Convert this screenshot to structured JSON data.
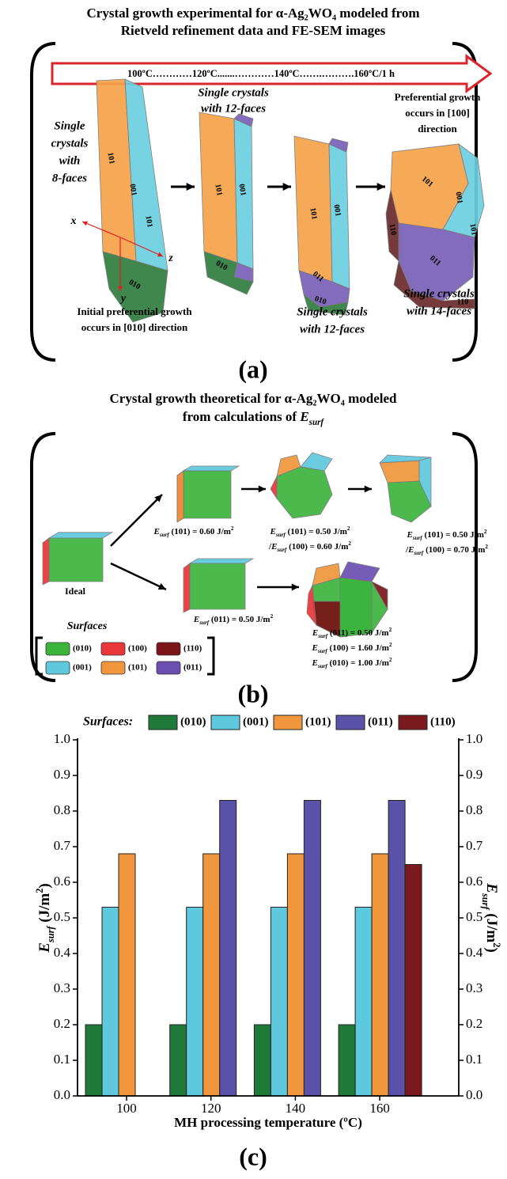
{
  "panel_a": {
    "title": [
      "Crystal growth experimental for α-Ag₂WO₄ modeled from",
      "Rietveld refinement data and FE-SEM images"
    ],
    "timeline": "100ºC…………120ºC.......…………140ºC…….……….160ºC/1 h",
    "labels": [
      {
        "lines": [
          "Single",
          "crystals",
          "with",
          "8-faces"
        ]
      },
      {
        "lines": [
          "Single crystals",
          "with 12-faces"
        ]
      },
      {
        "lines": [
          "Preferential growth",
          "occurs in [100]",
          "direction"
        ]
      },
      {
        "lines": [
          "Initial preferential growth",
          "occurs in [010] direction"
        ]
      },
      {
        "lines": [
          "Single crystals",
          "with 12-faces"
        ]
      },
      {
        "lines": [
          "Single crystals",
          "with 14-faces"
        ]
      }
    ],
    "axes": [
      "x",
      "z",
      "y"
    ],
    "faces": [
      "101",
      "001",
      "101",
      "010",
      "101",
      "001",
      "010",
      "101",
      "001",
      "011",
      "010",
      "101",
      "001",
      "101",
      "110",
      "011",
      "110"
    ],
    "panel_label": "(a)"
  },
  "panel_b": {
    "title": [
      {
        "text": "Crystal growth theoretical for α-Ag₂WO₄ modeled"
      },
      {
        "pre": "from calculations of ",
        "E": "E",
        "sub": "surf"
      }
    ],
    "ideal_label": "Ideal",
    "formulas": [
      [
        {
          "E": "E",
          "sub": "surf",
          "text": " (101) = 0.60 J/m",
          "sup": "2"
        }
      ],
      [
        {
          "E": "E",
          "sub": "surf",
          "text": " (101) = 0.50 J/m",
          "sup": "2"
        },
        {
          "pre": "/",
          "E": "E",
          "sub": "surf",
          "text": " (100) = 0.60 J/m",
          "sup": "2"
        }
      ],
      [
        {
          "E": "E",
          "sub": "surf",
          "text": " (101) = 0.50 J/m",
          "sup": "2"
        },
        {
          "pre": "/",
          "E": "E",
          "sub": "surf",
          "text": " (100) = 0.70 J/m",
          "sup": "2"
        }
      ],
      [
        {
          "E": "E",
          "sub": "surf",
          "text": " (011) = 0.50 J/m",
          "sup": "2"
        }
      ],
      [
        {
          "E": "E",
          "sub": "surf",
          "text": " (011) = 0.50 J/m",
          "sup": "2"
        },
        {
          "E": "E",
          "sub": "surf",
          "text": " (100) = 1.60 J/m",
          "sup": "2"
        },
        {
          "E": "E",
          "sub": "surf",
          "text": " (010) = 1.00 J/m",
          "sup": "2"
        }
      ]
    ],
    "legend_title": "Surfaces",
    "legend": [
      {
        "label": "(010)",
        "color": "#3cb43c"
      },
      {
        "label": "(100)",
        "color": "#e8363a"
      },
      {
        "label": "(110)",
        "color": "#7a1418"
      },
      {
        "label": "(001)",
        "color": "#5ec8dc"
      },
      {
        "label": "(101)",
        "color": "#f0963c"
      },
      {
        "label": "(011)",
        "color": "#6a4fb0"
      }
    ],
    "panel_label": "(b)"
  },
  "chart_data": {
    "type": "bar",
    "legend_title": "Surfaces:",
    "categories": [
      "100",
      "120",
      "140",
      "160"
    ],
    "series": [
      {
        "name": "(010)",
        "color": "#1f7a3a",
        "values": [
          0.2,
          0.2,
          0.2,
          0.2
        ]
      },
      {
        "name": "(001)",
        "color": "#5ec8dc",
        "values": [
          0.53,
          0.53,
          0.53,
          0.53
        ]
      },
      {
        "name": "(101)",
        "color": "#f0963c",
        "values": [
          0.68,
          0.68,
          0.68,
          0.68
        ]
      },
      {
        "name": "(011)",
        "color": "#5a52a8",
        "values": [
          null,
          0.83,
          0.83,
          0.83
        ]
      },
      {
        "name": "(110)",
        "color": "#7a1a1e",
        "values": [
          null,
          null,
          null,
          0.65
        ]
      }
    ],
    "ylim": [
      0,
      1
    ],
    "yticks": [
      {
        "value": 0,
        "label": "0.0"
      },
      0.1,
      0.2,
      0.3,
      0.4,
      0.5,
      0.6,
      0.7,
      0.8,
      0.9,
      {
        "value": 1,
        "label": "1.0"
      }
    ],
    "y2lim": [
      0,
      1
    ],
    "y2ticks": [
      {
        "value": 0,
        "label": "0.0"
      },
      0.1,
      0.2,
      0.3,
      0.4,
      0.5,
      0.6,
      0.7,
      0.8,
      0.9,
      {
        "value": 1,
        "label": "1.0"
      }
    ],
    "y_label": {
      "E": "E",
      "sub": "surf",
      "text": " (J/m",
      "sup": "2",
      "post": ")"
    },
    "y2_label": {
      "E": "E",
      "sub": "surf",
      "text": " (J/m",
      "sup": "2",
      "post": ")"
    },
    "x_label": "MH processing temperature (ºC)",
    "panel_label": "(c)"
  }
}
